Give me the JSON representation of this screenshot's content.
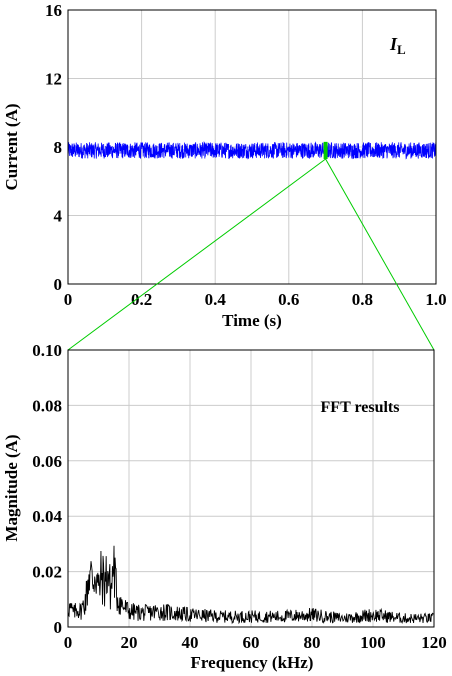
{
  "chart_data": [
    {
      "type": "line",
      "annotation": "I",
      "annotation_sub": "L",
      "xlabel": "Time (s)",
      "ylabel": "Current (A)",
      "xlim": [
        0,
        1.0
      ],
      "ylim": [
        0,
        16
      ],
      "xticks": [
        "0",
        "0.2",
        "0.4",
        "0.6",
        "0.8",
        "1.0"
      ],
      "yticks": [
        "0",
        "4",
        "8",
        "12",
        "16"
      ],
      "grid": true,
      "series": [
        {
          "color": "#0000ff",
          "mean": 7.8,
          "band": [
            7.2,
            8.4
          ],
          "x_range": [
            0,
            1.0
          ]
        },
        {
          "color": "#00cc00",
          "x": 0.7,
          "band": [
            7.3,
            8.3
          ]
        }
      ],
      "zoom_from_x": 0.7
    },
    {
      "type": "line",
      "annotation": "FFT results",
      "xlabel": "Frequency (kHz)",
      "ylabel": "Magnitude (A)",
      "xlim": [
        0,
        120
      ],
      "ylim": [
        0,
        0.1
      ],
      "xticks": [
        "0",
        "20",
        "40",
        "60",
        "80",
        "100",
        "120"
      ],
      "yticks": [
        "0",
        "0.02",
        "0.04",
        "0.06",
        "0.08",
        "0.10"
      ],
      "grid": true,
      "series": [
        {
          "color": "#000000",
          "x": [
            0,
            1,
            2,
            3,
            4,
            5,
            6,
            7,
            8,
            9,
            10,
            11,
            12,
            13,
            14,
            15,
            16,
            17,
            18,
            20,
            25,
            30,
            40,
            50,
            60,
            70,
            80,
            90,
            100,
            110,
            120
          ],
          "y": [
            0.012,
            0.01,
            0.008,
            0.011,
            0.009,
            0.012,
            0.018,
            0.033,
            0.026,
            0.034,
            0.021,
            0.03,
            0.025,
            0.033,
            0.02,
            0.036,
            0.018,
            0.015,
            0.012,
            0.009,
            0.008,
            0.009,
            0.007,
            0.006,
            0.006,
            0.006,
            0.007,
            0.005,
            0.007,
            0.005,
            0.005
          ]
        }
      ]
    }
  ],
  "colors": {
    "grid": "#cccccc",
    "zoom_lines": "#00cc00"
  }
}
